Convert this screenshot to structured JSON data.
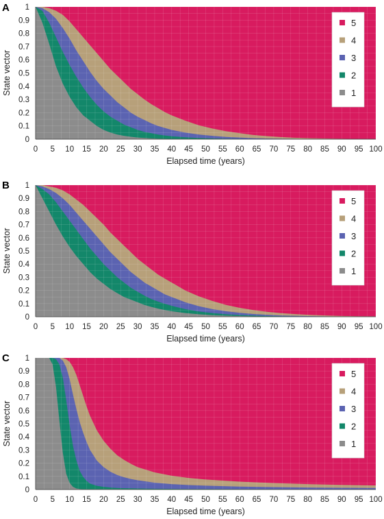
{
  "colors": {
    "1": "#8C8C8C",
    "2": "#13876A",
    "3": "#5B63B1",
    "4": "#B7A07A",
    "5": "#D81B5F",
    "legend_bg": "#ffffff"
  },
  "chart_data": [
    {
      "type": "area",
      "stacked": true,
      "panel_label": "A",
      "xlabel": "Elapsed time (years)",
      "ylabel": "State vector",
      "xlim": [
        0,
        100
      ],
      "ylim": [
        0,
        1
      ],
      "x_ticks": [
        "0",
        "5",
        "10",
        "15",
        "20",
        "25",
        "30",
        "35",
        "40",
        "45",
        "50",
        "55",
        "60",
        "65",
        "70",
        "75",
        "80",
        "85",
        "90",
        "95",
        "100"
      ],
      "y_ticks": [
        "0",
        "0.1",
        "0.2",
        "0.3",
        "0.4",
        "0.5",
        "0.6",
        "0.7",
        "0.8",
        "0.9",
        "1"
      ],
      "grid": true,
      "legend_position": "top-right",
      "legend": [
        "5",
        "4",
        "3",
        "2",
        "1"
      ],
      "x": [
        0,
        2,
        4,
        6,
        8,
        10,
        12,
        14,
        16,
        18,
        20,
        22,
        24,
        26,
        28,
        30,
        32,
        34,
        36,
        38,
        40,
        44,
        48,
        52,
        56,
        60,
        64,
        68,
        72,
        76,
        80,
        85,
        90,
        95,
        100
      ],
      "cumulative_series": [
        {
          "name": "1",
          "values": [
            1.0,
            0.88,
            0.72,
            0.55,
            0.42,
            0.32,
            0.24,
            0.18,
            0.14,
            0.1,
            0.07,
            0.05,
            0.035,
            0.025,
            0.018,
            0.012,
            0.009,
            0.006,
            0.004,
            0.003,
            0.002,
            0.001,
            0,
            0,
            0,
            0,
            0,
            0,
            0,
            0,
            0,
            0,
            0,
            0,
            0
          ]
        },
        {
          "name": "2",
          "values": [
            1.0,
            0.97,
            0.88,
            0.77,
            0.66,
            0.56,
            0.47,
            0.39,
            0.32,
            0.26,
            0.21,
            0.17,
            0.14,
            0.11,
            0.09,
            0.07,
            0.055,
            0.045,
            0.035,
            0.028,
            0.022,
            0.014,
            0.009,
            0.006,
            0.004,
            0.003,
            0.002,
            0.001,
            0.001,
            0,
            0,
            0,
            0,
            0,
            0
          ]
        },
        {
          "name": "3",
          "values": [
            1.0,
            0.99,
            0.96,
            0.91,
            0.84,
            0.76,
            0.67,
            0.59,
            0.51,
            0.44,
            0.38,
            0.33,
            0.28,
            0.24,
            0.2,
            0.17,
            0.145,
            0.12,
            0.1,
            0.085,
            0.07,
            0.05,
            0.035,
            0.025,
            0.017,
            0.012,
            0.008,
            0.005,
            0.004,
            0.003,
            0.002,
            0.001,
            0.001,
            0,
            0
          ]
        },
        {
          "name": "4",
          "values": [
            1.0,
            1.0,
            0.99,
            0.97,
            0.94,
            0.89,
            0.83,
            0.77,
            0.71,
            0.65,
            0.59,
            0.53,
            0.48,
            0.43,
            0.38,
            0.34,
            0.3,
            0.265,
            0.235,
            0.205,
            0.18,
            0.14,
            0.105,
            0.08,
            0.06,
            0.045,
            0.032,
            0.023,
            0.016,
            0.011,
            0.008,
            0.005,
            0.003,
            0.002,
            0.001
          ]
        },
        {
          "name": "5",
          "values": [
            1,
            1,
            1,
            1,
            1,
            1,
            1,
            1,
            1,
            1,
            1,
            1,
            1,
            1,
            1,
            1,
            1,
            1,
            1,
            1,
            1,
            1,
            1,
            1,
            1,
            1,
            1,
            1,
            1,
            1,
            1,
            1,
            1,
            1,
            1
          ]
        }
      ]
    },
    {
      "type": "area",
      "stacked": true,
      "panel_label": "B",
      "xlabel": "Elapsed time (years)",
      "ylabel": "State vector",
      "xlim": [
        0,
        100
      ],
      "ylim": [
        0,
        1
      ],
      "x_ticks": [
        "0",
        "5",
        "10",
        "15",
        "20",
        "25",
        "30",
        "35",
        "40",
        "45",
        "50",
        "55",
        "60",
        "65",
        "70",
        "75",
        "80",
        "85",
        "90",
        "95",
        "100"
      ],
      "y_ticks": [
        "0",
        "0.1",
        "0.2",
        "0.3",
        "0.4",
        "0.5",
        "0.6",
        "0.7",
        "0.8",
        "0.9",
        "1"
      ],
      "grid": true,
      "legend_position": "top-right",
      "legend": [
        "5",
        "4",
        "3",
        "2",
        "1"
      ],
      "x": [
        0,
        2,
        4,
        6,
        8,
        10,
        12,
        14,
        16,
        18,
        20,
        22,
        24,
        26,
        28,
        30,
        32,
        34,
        36,
        38,
        40,
        44,
        48,
        52,
        56,
        60,
        64,
        68,
        72,
        76,
        80,
        85,
        90,
        95,
        100
      ],
      "cumulative_series": [
        {
          "name": "1",
          "values": [
            1.0,
            0.9,
            0.8,
            0.7,
            0.61,
            0.53,
            0.46,
            0.4,
            0.34,
            0.29,
            0.25,
            0.21,
            0.18,
            0.15,
            0.13,
            0.11,
            0.09,
            0.075,
            0.062,
            0.051,
            0.042,
            0.028,
            0.019,
            0.012,
            0.008,
            0.005,
            0.003,
            0.002,
            0.001,
            0.001,
            0,
            0,
            0,
            0,
            0
          ]
        },
        {
          "name": "2",
          "values": [
            1.0,
            0.97,
            0.93,
            0.87,
            0.8,
            0.73,
            0.66,
            0.59,
            0.52,
            0.46,
            0.4,
            0.35,
            0.3,
            0.26,
            0.22,
            0.19,
            0.16,
            0.135,
            0.115,
            0.098,
            0.083,
            0.058,
            0.04,
            0.028,
            0.019,
            0.013,
            0.009,
            0.006,
            0.004,
            0.003,
            0.002,
            0.001,
            0.001,
            0,
            0
          ]
        },
        {
          "name": "3",
          "values": [
            1.0,
            0.99,
            0.97,
            0.94,
            0.9,
            0.85,
            0.79,
            0.73,
            0.67,
            0.61,
            0.55,
            0.49,
            0.44,
            0.39,
            0.34,
            0.3,
            0.26,
            0.23,
            0.2,
            0.17,
            0.15,
            0.11,
            0.08,
            0.058,
            0.042,
            0.03,
            0.021,
            0.015,
            0.01,
            0.007,
            0.005,
            0.003,
            0.002,
            0.001,
            0.001
          ]
        },
        {
          "name": "4",
          "values": [
            1.0,
            1.0,
            0.99,
            0.98,
            0.96,
            0.93,
            0.89,
            0.85,
            0.8,
            0.75,
            0.7,
            0.64,
            0.59,
            0.54,
            0.49,
            0.44,
            0.4,
            0.36,
            0.32,
            0.29,
            0.26,
            0.2,
            0.155,
            0.12,
            0.09,
            0.068,
            0.051,
            0.038,
            0.028,
            0.021,
            0.015,
            0.01,
            0.006,
            0.004,
            0.003
          ]
        },
        {
          "name": "5",
          "values": [
            1,
            1,
            1,
            1,
            1,
            1,
            1,
            1,
            1,
            1,
            1,
            1,
            1,
            1,
            1,
            1,
            1,
            1,
            1,
            1,
            1,
            1,
            1,
            1,
            1,
            1,
            1,
            1,
            1,
            1,
            1,
            1,
            1,
            1,
            1
          ]
        }
      ]
    },
    {
      "type": "area",
      "stacked": true,
      "panel_label": "C",
      "xlabel": "Elapsed time (years)",
      "ylabel": "State vector",
      "xlim": [
        0,
        100
      ],
      "ylim": [
        0,
        1
      ],
      "x_ticks": [
        "0",
        "5",
        "10",
        "15",
        "20",
        "25",
        "30",
        "35",
        "40",
        "45",
        "50",
        "55",
        "60",
        "65",
        "70",
        "75",
        "80",
        "85",
        "90",
        "95",
        "100"
      ],
      "y_ticks": [
        "0",
        "0.1",
        "0.2",
        "0.3",
        "0.4",
        "0.5",
        "0.6",
        "0.7",
        "0.8",
        "0.9",
        "1"
      ],
      "grid": true,
      "legend_position": "top-right",
      "legend": [
        "5",
        "4",
        "3",
        "2",
        "1"
      ],
      "x": [
        0,
        2,
        4,
        5,
        6,
        7,
        8,
        9,
        10,
        11,
        12,
        13,
        14,
        15,
        16,
        18,
        20,
        22,
        24,
        26,
        28,
        30,
        35,
        40,
        45,
        50,
        60,
        70,
        80,
        90,
        100
      ],
      "cumulative_series": [
        {
          "name": "1",
          "values": [
            1.0,
            1.0,
            1.0,
            0.95,
            0.78,
            0.52,
            0.28,
            0.12,
            0.05,
            0.02,
            0.008,
            0.004,
            0.002,
            0.001,
            0,
            0,
            0,
            0,
            0,
            0,
            0,
            0,
            0,
            0,
            0,
            0,
            0,
            0,
            0,
            0,
            0
          ]
        },
        {
          "name": "2",
          "values": [
            1.0,
            1.0,
            1.0,
            1.0,
            0.99,
            0.95,
            0.85,
            0.68,
            0.49,
            0.33,
            0.22,
            0.14,
            0.095,
            0.065,
            0.045,
            0.028,
            0.02,
            0.015,
            0.012,
            0.01,
            0.009,
            0.008,
            0.006,
            0.005,
            0.004,
            0.004,
            0.003,
            0.003,
            0.002,
            0.002,
            0.002
          ]
        },
        {
          "name": "3",
          "values": [
            1.0,
            1.0,
            1.0,
            1.0,
            1.0,
            1.0,
            0.98,
            0.93,
            0.84,
            0.72,
            0.61,
            0.51,
            0.43,
            0.36,
            0.3,
            0.22,
            0.17,
            0.135,
            0.11,
            0.093,
            0.08,
            0.07,
            0.052,
            0.041,
            0.034,
            0.029,
            0.022,
            0.018,
            0.015,
            0.013,
            0.012
          ]
        },
        {
          "name": "4",
          "values": [
            1.0,
            1.0,
            1.0,
            1.0,
            1.0,
            1.0,
            1.0,
            0.99,
            0.97,
            0.93,
            0.87,
            0.79,
            0.71,
            0.63,
            0.56,
            0.45,
            0.37,
            0.31,
            0.26,
            0.225,
            0.195,
            0.17,
            0.13,
            0.105,
            0.088,
            0.076,
            0.06,
            0.049,
            0.041,
            0.035,
            0.031
          ]
        },
        {
          "name": "5",
          "values": [
            1,
            1,
            1,
            1,
            1,
            1,
            1,
            1,
            1,
            1,
            1,
            1,
            1,
            1,
            1,
            1,
            1,
            1,
            1,
            1,
            1,
            1,
            1,
            1,
            1,
            1,
            1,
            1,
            1,
            1,
            1
          ]
        }
      ]
    }
  ]
}
